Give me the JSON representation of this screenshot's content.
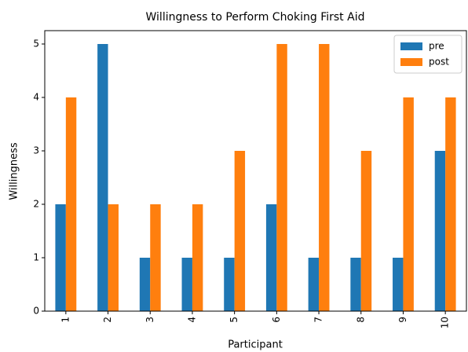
{
  "chart_data": {
    "type": "bar",
    "title": "Willingness to Perform Choking First Aid",
    "xlabel": "Participant",
    "ylabel": "Willingness",
    "categories": [
      "1",
      "2",
      "3",
      "4",
      "5",
      "6",
      "7",
      "8",
      "9",
      "10"
    ],
    "series": [
      {
        "name": "pre",
        "color": "#1f77b4",
        "values": [
          2,
          5,
          1,
          1,
          1,
          2,
          1,
          1,
          1,
          3
        ]
      },
      {
        "name": "post",
        "color": "#ff7f0e",
        "values": [
          4,
          2,
          2,
          2,
          3,
          5,
          5,
          3,
          4,
          4
        ]
      }
    ],
    "ylim": [
      0,
      5.25
    ],
    "yticks": [
      0,
      1,
      2,
      3,
      4,
      5
    ],
    "legend": "upper right"
  }
}
